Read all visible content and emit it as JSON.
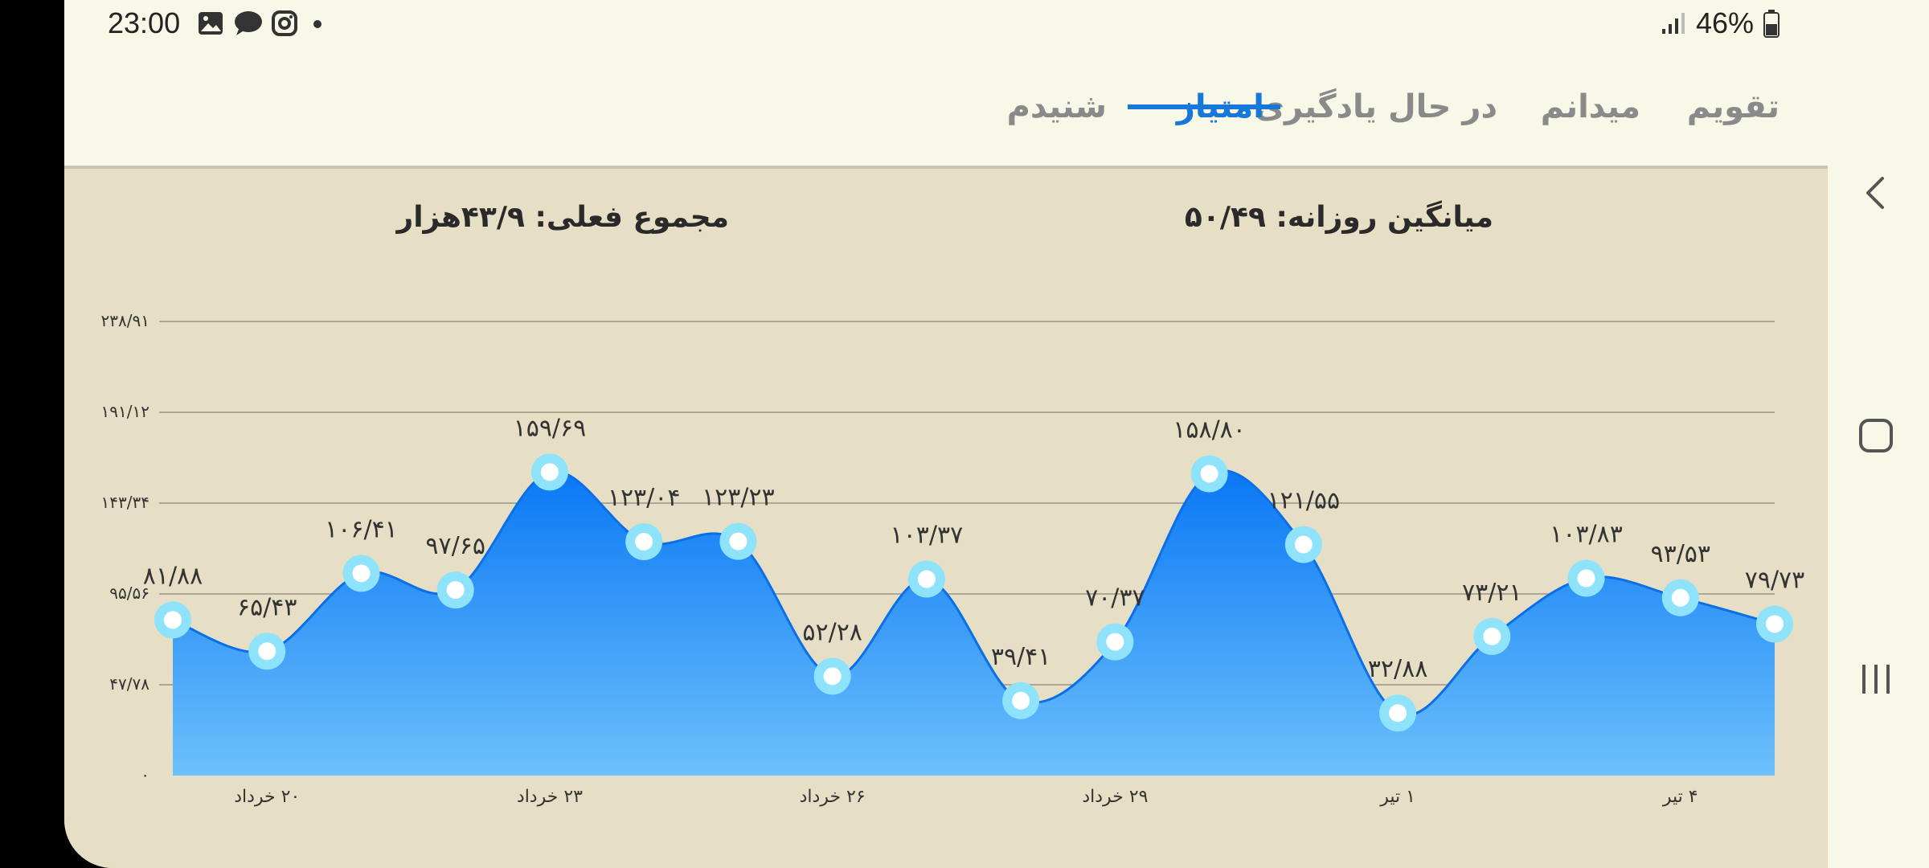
{
  "status_bar": {
    "time": "23:00",
    "battery": "46%",
    "notification_icons": [
      "gallery-icon",
      "message-icon",
      "instagram-icon",
      "dot-icon"
    ]
  },
  "tabs": [
    {
      "label": "تقویم",
      "active": false
    },
    {
      "label": "میدانم",
      "active": false
    },
    {
      "label": "در حال یادگیری",
      "active": false
    },
    {
      "label": "امتیاز",
      "active": true
    },
    {
      "label": "شنیدم",
      "active": false
    }
  ],
  "stats": {
    "daily_average": "میانگین روزانه: ۵۰/۴۹",
    "current_total": "مجموع فعلی: ۴۳/۹هزار"
  },
  "colors": {
    "accent": "#1778d9",
    "area_top": "#0a78f5",
    "area_bottom": "#6cc0fb",
    "point_ring": "#8ee3fb",
    "panel_bg": "#e6dfc6"
  },
  "chart_data": {
    "type": "area",
    "ylim": [
      0,
      238.91
    ],
    "y_ticks": [
      0,
      47.78,
      95.56,
      143.34,
      191.12,
      238.91
    ],
    "y_tick_labels": [
      "۰",
      "۴۷/۷۸",
      "۹۵/۵۶",
      "۱۴۳/۳۴",
      "۱۹۱/۱۲",
      "۲۳۸/۹۱"
    ],
    "x_tick_labels": [
      {
        "index": 1,
        "label": "۲۰ خرداد"
      },
      {
        "index": 4,
        "label": "۲۳ خرداد"
      },
      {
        "index": 7,
        "label": "۲۶ خرداد"
      },
      {
        "index": 10,
        "label": "۲۹ خرداد"
      },
      {
        "index": 13,
        "label": "۱ تیر"
      },
      {
        "index": 16,
        "label": "۴ تیر"
      }
    ],
    "values": [
      81.88,
      65.43,
      106.41,
      97.65,
      159.69,
      123.04,
      123.23,
      52.28,
      103.37,
      39.41,
      70.37,
      158.8,
      121.55,
      32.88,
      73.21,
      103.83,
      93.53,
      79.73
    ],
    "value_labels": [
      "۸۱/۸۸",
      "۶۵/۴۳",
      "۱۰۶/۴۱",
      "۹۷/۶۵",
      "۱۵۹/۶۹",
      "۱۲۳/۰۴",
      "۱۲۳/۲۳",
      "۵۲/۲۸",
      "۱۰۳/۳۷",
      "۳۹/۴۱",
      "۷۰/۳۷",
      "۱۵۸/۸۰",
      "۱۲۱/۵۵",
      "۳۲/۸۸",
      "۷۳/۲۱",
      "۱۰۳/۸۳",
      "۹۳/۵۳",
      "۷۹/۷۳"
    ],
    "grid": true
  },
  "nav": [
    "back-icon",
    "home-icon",
    "recents-icon"
  ]
}
